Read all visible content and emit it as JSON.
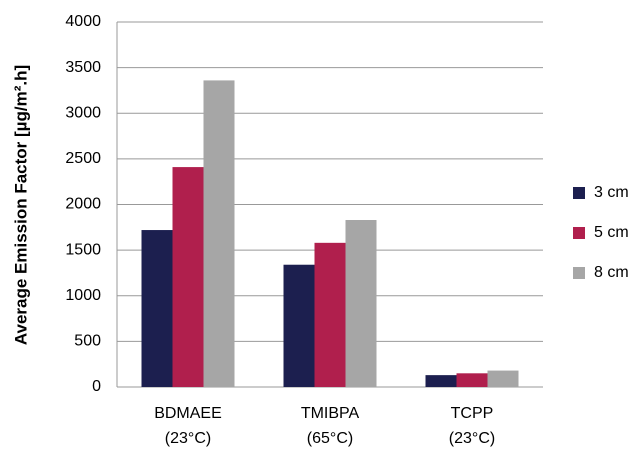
{
  "chart_data": {
    "type": "bar",
    "y_label": "Average Emission Factor [µg/m².h]",
    "categories": [
      [
        "BDMAEE",
        "(23°C)"
      ],
      [
        "TMIBPA",
        "(65°C)"
      ],
      [
        "TCPP",
        "(23°C)"
      ]
    ],
    "series": [
      {
        "name": "3 cm",
        "color": "#1c1f4f",
        "values": [
          1720,
          1340,
          130
        ]
      },
      {
        "name": "5 cm",
        "color": "#b01f4d",
        "values": [
          2410,
          1580,
          150
        ]
      },
      {
        "name": "8 cm",
        "color": "#a6a6a6",
        "values": [
          3360,
          1830,
          180
        ]
      }
    ],
    "ylim": [
      0,
      4000
    ],
    "yticks": [
      0,
      500,
      1000,
      1500,
      2000,
      2500,
      3000,
      3500,
      4000
    ],
    "grid": true,
    "legend": "right"
  }
}
